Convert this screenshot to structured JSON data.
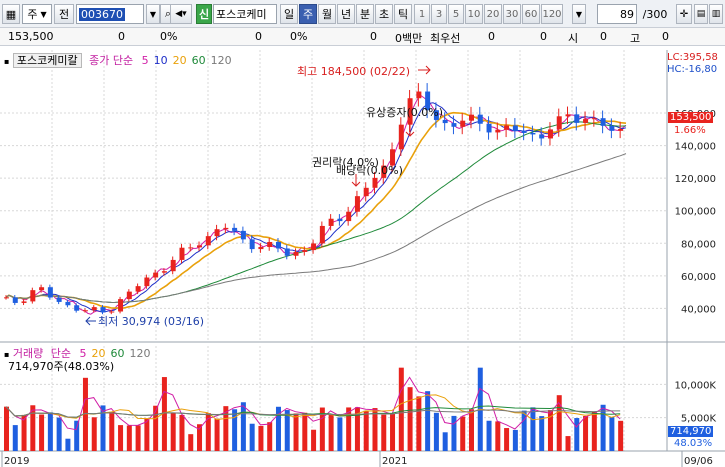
{
  "toolbar": {
    "market_type": "주",
    "market_prev": "전",
    "stock_code": "003670",
    "new_badge": "신",
    "stock_name": "포스코케미",
    "periods": [
      "일",
      "주",
      "월",
      "년",
      "분",
      "초",
      "틱"
    ],
    "selected_period": "주",
    "intervals": [
      "1",
      "3",
      "5",
      "10",
      "20",
      "30",
      "60",
      "120"
    ],
    "count_display": "89",
    "count_total": "/300"
  },
  "infobar": {
    "price": "153,500",
    "change": "0",
    "rate": "0%",
    "f1": "0",
    "f1_pct": "0%",
    "f2": "0",
    "f2_pct": "0%",
    "volume": "0백만",
    "best_ask_label": "최우선",
    "f3": "0",
    "f4": "0",
    "open_label": "시",
    "f5": "0",
    "high_label": "고",
    "f6": "0"
  },
  "price_panel": {
    "name": "포스코케미칼",
    "ma_label": "종가 단순",
    "ma_periods": [
      "5",
      "10",
      "20",
      "60",
      "120"
    ],
    "ma_colors": [
      "#d11ea6",
      "#1e2fc9",
      "#e9a10b",
      "#1f8a3a",
      "#7a7a7a"
    ],
    "lc_label": "LC:395,58",
    "hc_label": "HC:-16,80",
    "current_price": "153,500",
    "current_pct": "1.66%",
    "high_annotation": "최고 184,500 (02/22)",
    "low_annotation": "최저 30,974 (03/16)",
    "event_rights": "권리락(4.0%)",
    "event_dividend": "배당락(0.0%)",
    "event_rights_issue": "유상증자(0.0%)",
    "y_ticks": [
      "160,000",
      "140,000",
      "120,000",
      "100,000",
      "80,000",
      "60,000",
      "40,000"
    ]
  },
  "volume_panel": {
    "name": "거래량",
    "ma_label": "단순",
    "ma_periods": [
      "5",
      "20",
      "60",
      "120"
    ],
    "ma_colors": [
      "#d11ea6",
      "#e9a10b",
      "#1f8a3a",
      "#7a7a7a"
    ],
    "info": "714,970주(48.03%)",
    "current_volume": "714,970",
    "current_pct": "48.03%",
    "y_ticks": [
      "10,000K",
      "5,000K"
    ]
  },
  "x_axis": {
    "labels": [
      "2019",
      "2021",
      "09/06"
    ]
  },
  "colors": {
    "up": "#e8231e",
    "down": "#1f5fe0",
    "grid": "#d8d8d8",
    "price_tag_bg": "#e8231e",
    "volume_tag_bg": "#1f5fe0"
  }
}
